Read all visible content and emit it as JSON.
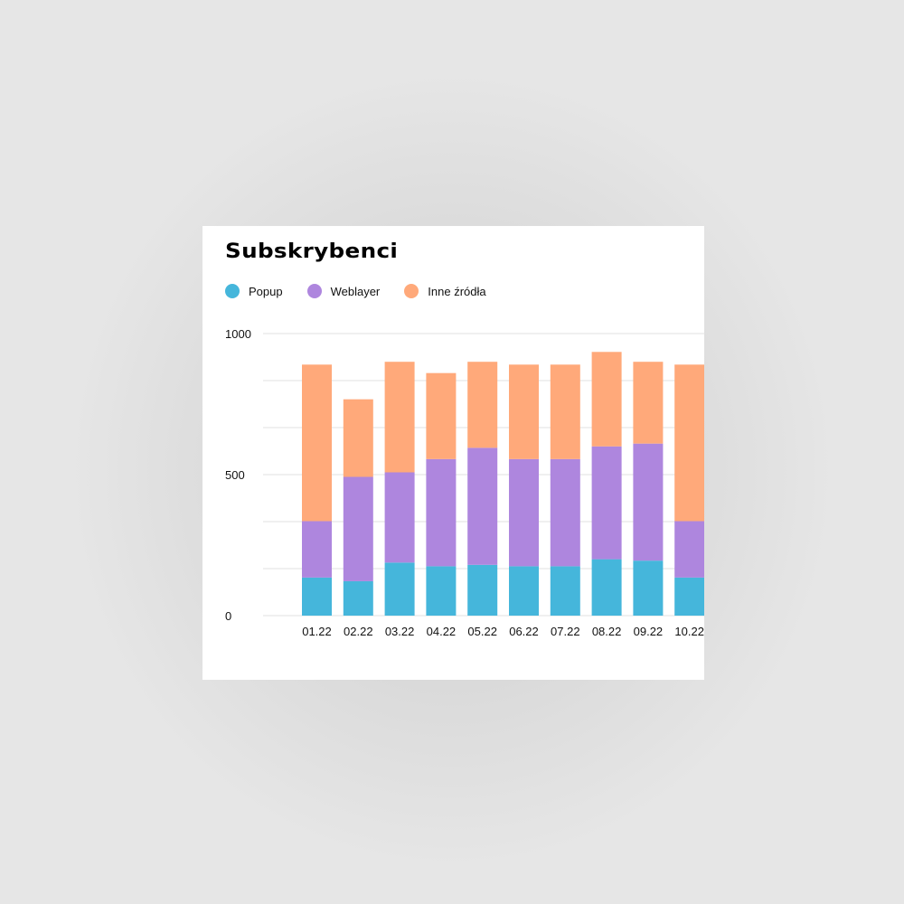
{
  "chart_data": {
    "type": "bar",
    "stacked": true,
    "title": "Subskrybenci",
    "xlabel": "",
    "ylabel": "",
    "ylim": [
      0,
      1000
    ],
    "yticks": [
      "1000",
      "500",
      "0"
    ],
    "grid": true,
    "legend_position": "top-left",
    "categories": [
      "01.22",
      "02.22",
      "03.22",
      "04.22",
      "05.22",
      "06.22",
      "07.22",
      "08.22",
      "09.22",
      "10.22"
    ],
    "series": [
      {
        "name": "Popup",
        "color": "#45b6db",
        "values": [
          135,
          122,
          188,
          175,
          180,
          175,
          175,
          200,
          195,
          135
        ]
      },
      {
        "name": "Weblayer",
        "color": "#ae86de",
        "values": [
          200,
          370,
          320,
          380,
          415,
          380,
          380,
          400,
          415,
          200
        ]
      },
      {
        "name": "Inne źródła",
        "color": "#ffa97a",
        "values": [
          555,
          275,
          392,
          305,
          305,
          335,
          335,
          335,
          290,
          555
        ]
      }
    ]
  }
}
